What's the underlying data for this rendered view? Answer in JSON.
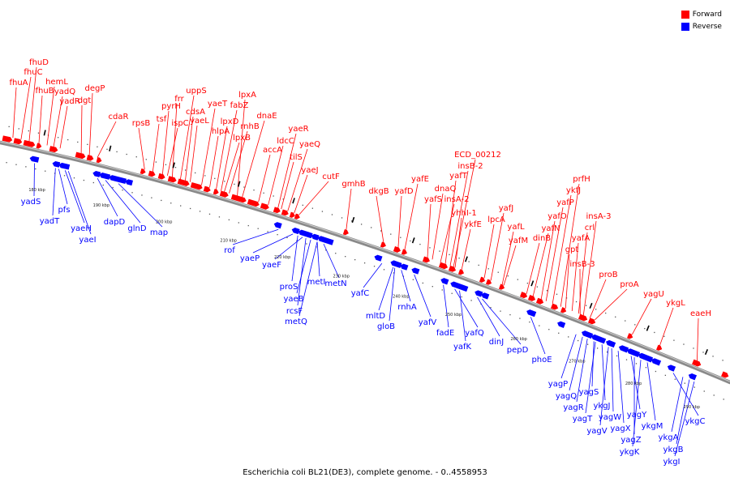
{
  "caption": "Escherichia coli BL21(DE3), complete genome. - 0..4558953",
  "colors": {
    "forward": "#ff0000",
    "reverse": "#0000ff",
    "backbone": "#8a8a8a"
  },
  "legend": [
    {
      "label": "Forward",
      "color": "#ff0000"
    },
    {
      "label": "Reverse",
      "color": "#0000ff"
    }
  ],
  "position_ticks": [
    "180 kbp",
    "190 kbp",
    "200 kbp",
    "210 kbp",
    "220 kbp",
    "230 kbp",
    "240 kbp",
    "250 kbp",
    "260 kbp",
    "270 kbp",
    "280 kbp",
    "290 kbp"
  ],
  "forward_genes": [
    "fhuA",
    "fhuC",
    "fhuD",
    "fhuB",
    "hemL",
    "yadQ",
    "yadR",
    "dgt",
    "degP",
    "cdaR",
    "rpsB",
    "tsf",
    "pyrH",
    "frr",
    "ispC",
    "uppS",
    "cdsA",
    "yaeL",
    "yaeT",
    "hlpA",
    "lpxD",
    "fabZ",
    "lpxA",
    "lpxB",
    "rnhB",
    "dnaE",
    "accA",
    "ldcC",
    "yaeR",
    "tilS",
    "yaeQ",
    "yaeJ",
    "cutF",
    "gmhB",
    "dkgB",
    "yafD",
    "yafE",
    "yafS",
    "dnaQ",
    "insA-2",
    "yafT",
    "insB-2",
    "ECD_00212",
    "yhhI-1",
    "ykfE",
    "lpcA",
    "yafJ",
    "yafL",
    "yafM",
    "dinB",
    "yafN",
    "yafO",
    "yafP",
    "ykfJ",
    "prfH",
    "gpt",
    "yafA",
    "crl",
    "insA-3",
    "insB-3",
    "proB",
    "proA",
    "yagU",
    "ykgL",
    "eaeH"
  ],
  "reverse_genes": [
    "yadS",
    "pfs",
    "yadT",
    "yaeH",
    "yaeI",
    "dapD",
    "glnD",
    "map",
    "rof",
    "yaeP",
    "yaeF",
    "proS",
    "yaeB",
    "metI",
    "metN",
    "rcsF",
    "metQ",
    "yafC",
    "mltD",
    "rnhA",
    "gloB",
    "yafV",
    "fadE",
    "yafQ",
    "yafK",
    "dinJ",
    "pepD",
    "phoE",
    "yagP",
    "yagQ",
    "yagR",
    "yagS",
    "yagT",
    "ykgJ",
    "yagV",
    "yagW",
    "yagX",
    "yagY",
    "yagZ",
    "ykgK",
    "ykgM",
    "ykgC",
    "ykgA",
    "ykgB",
    "ykgI"
  ]
}
